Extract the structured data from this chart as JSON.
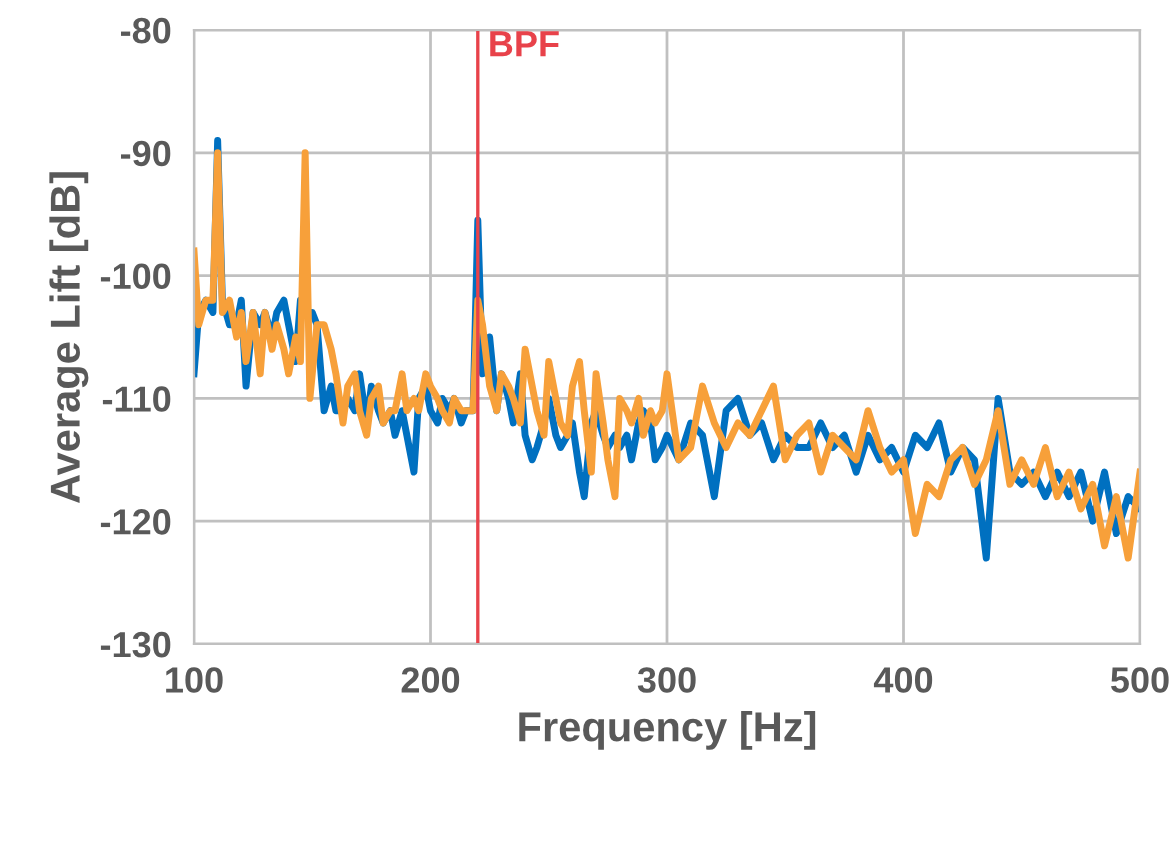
{
  "chart_data": {
    "type": "line",
    "xlabel": "Frequency [Hz]",
    "ylabel": "Average Lift [dB]",
    "xlim": [
      100,
      500
    ],
    "ylim": [
      -130,
      -80
    ],
    "xticks": [
      100,
      200,
      300,
      400,
      500
    ],
    "yticks": [
      -130,
      -120,
      -110,
      -100,
      -90,
      -80
    ],
    "grid": true,
    "line_style": "solid",
    "ref_lines": [
      {
        "axis": "x",
        "value": 220,
        "label": "BPF",
        "color": "#e8424a"
      }
    ],
    "series": [
      {
        "color": "#0070c0",
        "x": [
          100,
          102,
          105,
          108,
          110,
          112,
          115,
          118,
          120,
          122,
          125,
          128,
          130,
          133,
          135,
          138,
          140,
          143,
          145,
          148,
          150,
          152,
          155,
          158,
          160,
          163,
          165,
          168,
          170,
          173,
          175,
          178,
          180,
          183,
          185,
          188,
          190,
          193,
          195,
          198,
          200,
          203,
          205,
          208,
          210,
          213,
          215,
          218,
          220,
          222,
          225,
          228,
          230,
          233,
          235,
          238,
          240,
          243,
          245,
          248,
          250,
          253,
          255,
          258,
          260,
          263,
          265,
          268,
          270,
          273,
          275,
          278,
          280,
          283,
          285,
          288,
          290,
          293,
          295,
          298,
          300,
          305,
          310,
          315,
          320,
          325,
          330,
          335,
          340,
          345,
          350,
          355,
          360,
          365,
          370,
          375,
          380,
          385,
          390,
          395,
          400,
          405,
          410,
          415,
          420,
          425,
          430,
          435,
          440,
          445,
          450,
          455,
          460,
          465,
          470,
          475,
          480,
          485,
          490,
          495,
          500
        ],
        "values": [
          -108,
          -103,
          -102,
          -103,
          -89,
          -102,
          -104,
          -104,
          -102,
          -109,
          -103,
          -104,
          -103,
          -105,
          -103,
          -102,
          -104,
          -107,
          -102,
          -103,
          -103,
          -104,
          -111,
          -109,
          -111,
          -111,
          -110,
          -111,
          -108,
          -112,
          -109,
          -111,
          -112,
          -111,
          -113,
          -111,
          -113,
          -116,
          -110,
          -109,
          -111,
          -112,
          -110,
          -111,
          -110,
          -112,
          -111,
          -111,
          -95.5,
          -108,
          -105,
          -111,
          -108,
          -110,
          -112,
          -108,
          -113,
          -115,
          -114,
          -112,
          -110,
          -113,
          -114,
          -113,
          -112,
          -116,
          -118,
          -112,
          -111,
          -113,
          -114,
          -113,
          -114,
          -113,
          -115,
          -112,
          -111,
          -112,
          -115,
          -114,
          -113,
          -115,
          -112,
          -113,
          -118,
          -111,
          -110,
          -113,
          -112,
          -115,
          -113,
          -114,
          -114,
          -112,
          -114,
          -113,
          -116,
          -113,
          -115,
          -114,
          -116,
          -113,
          -114,
          -112,
          -116,
          -114,
          -115,
          -123,
          -110,
          -116,
          -117,
          -116,
          -118,
          -116,
          -118,
          -116,
          -120,
          -116,
          -121,
          -118,
          -119
        ]
      },
      {
        "color": "#f7a03a",
        "x": [
          100,
          102,
          105,
          108,
          110,
          112,
          115,
          118,
          120,
          122,
          125,
          128,
          130,
          133,
          135,
          138,
          140,
          143,
          145,
          147,
          149,
          152,
          155,
          158,
          160,
          163,
          165,
          168,
          170,
          173,
          175,
          178,
          180,
          183,
          185,
          188,
          190,
          193,
          195,
          198,
          200,
          203,
          205,
          208,
          210,
          213,
          215,
          218,
          220,
          222,
          225,
          228,
          230,
          233,
          235,
          238,
          240,
          243,
          245,
          248,
          250,
          253,
          255,
          258,
          260,
          263,
          265,
          268,
          270,
          273,
          275,
          278,
          280,
          283,
          285,
          288,
          290,
          293,
          295,
          298,
          300,
          305,
          310,
          315,
          320,
          325,
          330,
          335,
          340,
          345,
          350,
          355,
          360,
          365,
          370,
          375,
          380,
          385,
          390,
          395,
          400,
          405,
          410,
          415,
          420,
          425,
          430,
          435,
          440,
          445,
          450,
          455,
          460,
          465,
          470,
          475,
          480,
          485,
          490,
          495,
          500
        ],
        "values": [
          -98,
          -104,
          -102,
          -102,
          -90,
          -103,
          -102,
          -105,
          -103,
          -107,
          -103,
          -108,
          -103,
          -106,
          -104,
          -106,
          -108,
          -105,
          -107,
          -90,
          -110,
          -104,
          -104,
          -106,
          -108,
          -112,
          -109,
          -108,
          -111,
          -113,
          -110,
          -109,
          -112,
          -111,
          -111,
          -108,
          -111,
          -110,
          -111,
          -108,
          -109,
          -110,
          -111,
          -112,
          -110,
          -111,
          -111,
          -111,
          -102,
          -104,
          -109,
          -111,
          -108,
          -109,
          -110,
          -112,
          -106,
          -109,
          -111,
          -113,
          -107,
          -110,
          -112,
          -113,
          -109,
          -107,
          -111,
          -116,
          -108,
          -112,
          -115,
          -118,
          -110,
          -111,
          -112,
          -110,
          -113,
          -111,
          -112,
          -111,
          -108,
          -115,
          -114,
          -109,
          -112,
          -114,
          -112,
          -113,
          -111,
          -109,
          -115,
          -113,
          -112,
          -116,
          -113,
          -114,
          -115,
          -111,
          -114,
          -116,
          -115,
          -121,
          -117,
          -118,
          -115,
          -114,
          -117,
          -115,
          -111,
          -117,
          -115,
          -117,
          -114,
          -118,
          -116,
          -119,
          -117,
          -122,
          -118,
          -123,
          -116
        ]
      }
    ]
  }
}
